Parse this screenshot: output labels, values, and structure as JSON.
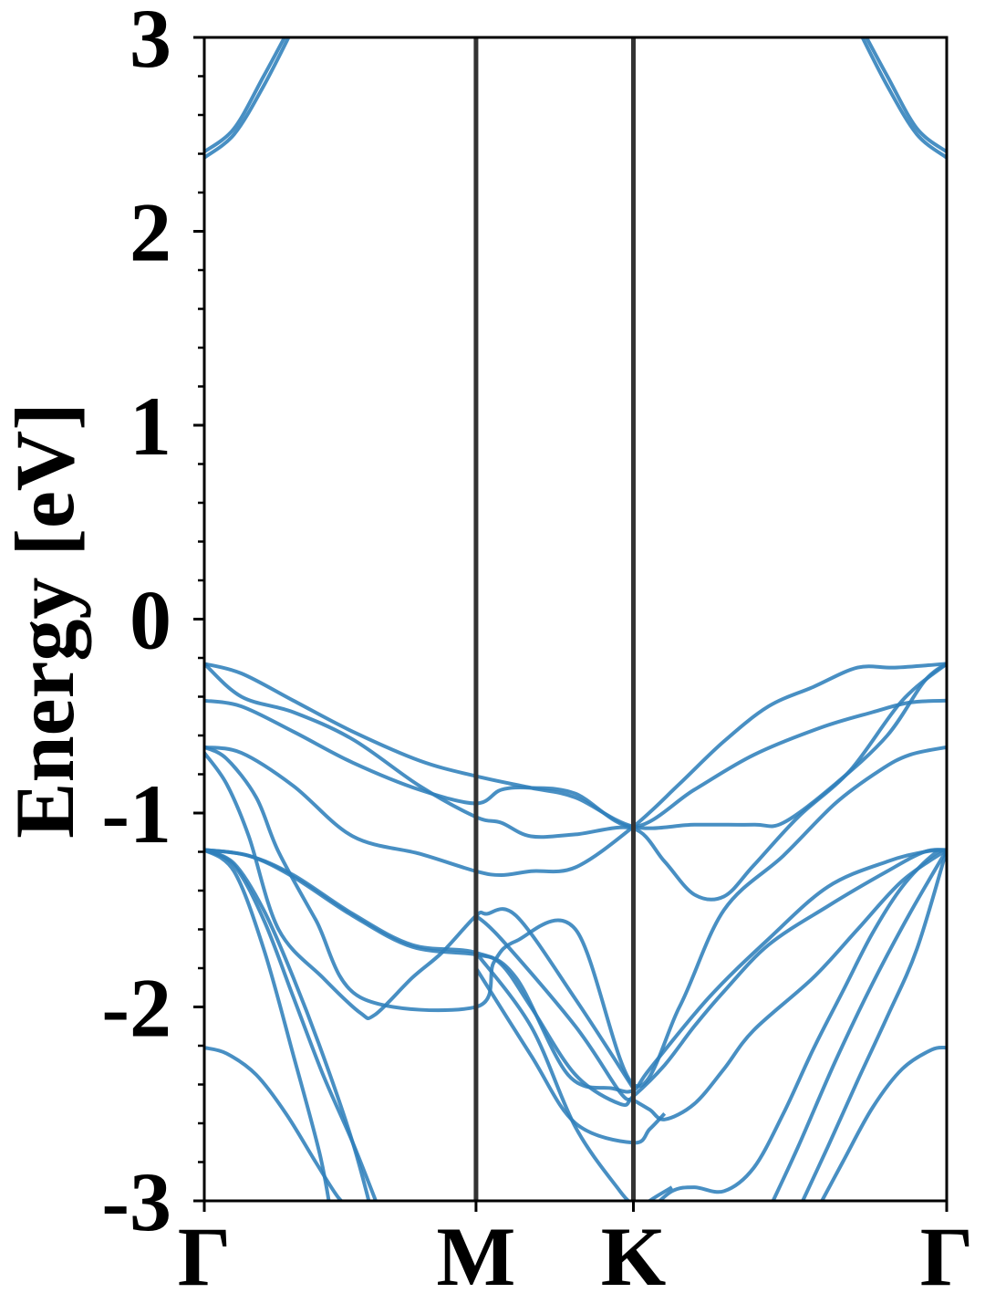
{
  "chart_data": {
    "type": "line",
    "title": "",
    "xlabel": "",
    "ylabel": "Energy [eV]",
    "ylim": [
      -3,
      3
    ],
    "yticks": [
      -3,
      -2,
      -1,
      0,
      1,
      2,
      3
    ],
    "ytick_labels": [
      "-3",
      "-2",
      "-1",
      "0",
      "1",
      "2",
      "3"
    ],
    "x_range": [
      0,
      1
    ],
    "high_symmetry_points": [
      {
        "label": "Γ",
        "x": 0.0
      },
      {
        "label": "M",
        "x": 0.366
      },
      {
        "label": "K",
        "x": 0.578
      },
      {
        "label": "Γ",
        "x": 1.0
      }
    ],
    "grid": false,
    "legend": "none",
    "colors": {
      "bands": "#2f80bb",
      "kpath_lines": "#333333",
      "axes": "#000000"
    },
    "series": [
      {
        "x": [
          0.0,
          0.04,
          0.08,
          0.12
        ],
        "y": [
          2.38,
          2.5,
          2.75,
          3.05
        ]
      },
      {
        "x": [
          0.0,
          0.04,
          0.08,
          0.115
        ],
        "y": [
          2.41,
          2.53,
          2.8,
          3.05
        ]
      },
      {
        "x": [
          0.88,
          0.92,
          0.96,
          1.0
        ],
        "y": [
          3.05,
          2.75,
          2.5,
          2.38
        ]
      },
      {
        "x": [
          0.885,
          0.92,
          0.96,
          1.0
        ],
        "y": [
          3.05,
          2.8,
          2.53,
          2.41
        ]
      },
      {
        "x": [
          0.0,
          0.05,
          0.12,
          0.2,
          0.29,
          0.366,
          0.44,
          0.5,
          0.578,
          0.66,
          0.74,
          0.78,
          0.85,
          0.92,
          0.97,
          1.0
        ],
        "y": [
          -0.23,
          -0.28,
          -0.42,
          -0.58,
          -0.73,
          -0.81,
          -0.87,
          -0.92,
          -1.07,
          -1.06,
          -1.06,
          -1.05,
          -0.85,
          -0.6,
          -0.32,
          -0.23
        ]
      },
      {
        "x": [
          0.0,
          0.05,
          0.12,
          0.2,
          0.29,
          0.366,
          0.4,
          0.44,
          0.5,
          0.578,
          0.66,
          0.74,
          0.83,
          0.9,
          0.95,
          1.0
        ],
        "y": [
          -0.42,
          -0.45,
          -0.58,
          -0.74,
          -0.88,
          -0.95,
          -0.88,
          -0.87,
          -0.9,
          -1.07,
          -0.88,
          -0.7,
          -0.56,
          -0.48,
          -0.43,
          -0.42
        ]
      },
      {
        "x": [
          0.0,
          0.05,
          0.12,
          0.2,
          0.29,
          0.366,
          0.4,
          0.44,
          0.5,
          0.578,
          0.62,
          0.66,
          0.7,
          0.74,
          0.8,
          0.87,
          0.94,
          1.0
        ],
        "y": [
          -0.23,
          -0.4,
          -0.48,
          -0.62,
          -0.86,
          -1.02,
          -1.05,
          -1.12,
          -1.11,
          -1.08,
          -1.25,
          -1.42,
          -1.43,
          -1.27,
          -1.02,
          -0.78,
          -0.42,
          -0.23
        ]
      },
      {
        "x": [
          0.0,
          0.05,
          0.12,
          0.2,
          0.29,
          0.366,
          0.4,
          0.44,
          0.5,
          0.578,
          0.64,
          0.7,
          0.76,
          0.82,
          0.88,
          0.93,
          1.0
        ],
        "y": [
          -0.66,
          -0.69,
          -0.86,
          -1.12,
          -1.21,
          -1.3,
          -1.32,
          -1.3,
          -1.28,
          -1.07,
          -0.85,
          -0.63,
          -0.45,
          -0.35,
          -0.25,
          -0.25,
          -0.23
        ]
      },
      {
        "x": [
          0.0,
          0.03,
          0.07,
          0.1,
          0.15,
          0.21,
          0.366,
          0.39,
          0.42,
          0.5,
          0.578,
          0.64,
          0.7,
          0.78,
          0.85,
          0.91,
          0.95,
          1.0
        ],
        "y": [
          -0.66,
          -0.72,
          -0.92,
          -1.2,
          -1.55,
          -1.95,
          -2.0,
          -1.77,
          -1.66,
          -1.6,
          -2.4,
          -2.0,
          -1.5,
          -1.22,
          -0.95,
          -0.78,
          -0.7,
          -0.66
        ]
      },
      {
        "x": [
          0.0,
          0.03,
          0.06,
          0.1,
          0.16,
          0.21,
          0.23,
          0.28,
          0.32,
          0.366,
          0.38,
          0.42,
          0.5,
          0.578
        ],
        "y": [
          -0.69,
          -0.85,
          -1.12,
          -1.6,
          -1.85,
          -2.03,
          -2.04,
          -1.85,
          -1.72,
          -1.53,
          -1.52,
          -1.53,
          -1.96,
          -2.42
        ]
      },
      {
        "x": [
          0.0,
          0.06,
          0.12,
          0.2,
          0.28,
          0.366,
          0.42,
          0.49,
          0.55,
          0.578,
          0.6,
          0.68,
          0.76,
          0.84,
          0.92,
          0.97,
          1.0
        ],
        "y": [
          -1.19,
          -1.22,
          -1.32,
          -1.52,
          -1.68,
          -1.72,
          -1.85,
          -2.35,
          -2.42,
          -2.43,
          -2.32,
          -1.95,
          -1.65,
          -1.38,
          -1.25,
          -1.2,
          -1.19
        ]
      },
      {
        "x": [
          0.0,
          0.06,
          0.12,
          0.2,
          0.28,
          0.366,
          0.4,
          0.44,
          0.5,
          0.56,
          0.578,
          0.62,
          0.66,
          0.7,
          0.76,
          0.84,
          0.92,
          0.97,
          1.0
        ],
        "y": [
          -1.19,
          -1.22,
          -1.33,
          -1.53,
          -1.69,
          -1.73,
          -1.78,
          -2.0,
          -2.35,
          -2.5,
          -2.46,
          -2.3,
          -2.1,
          -1.92,
          -1.68,
          -1.48,
          -1.3,
          -1.2,
          -1.19
        ]
      },
      {
        "x": [
          0.0,
          0.04,
          0.08,
          0.12,
          0.16,
          0.2,
          0.236
        ],
        "y": [
          -1.19,
          -1.27,
          -1.55,
          -1.95,
          -2.35,
          -2.7,
          -3.05
        ]
      },
      {
        "x": [
          0.0,
          0.04,
          0.08,
          0.12,
          0.16,
          0.2,
          0.225
        ],
        "y": [
          -1.19,
          -1.26,
          -1.5,
          -1.85,
          -2.25,
          -2.7,
          -3.05
        ]
      },
      {
        "x": [
          0.0,
          0.04,
          0.08,
          0.12,
          0.155,
          0.17
        ],
        "y": [
          -1.19,
          -1.3,
          -1.7,
          -2.25,
          -2.75,
          -3.05
        ]
      },
      {
        "x": [
          0.0,
          0.03,
          0.07,
          0.11,
          0.15,
          0.18,
          0.2
        ],
        "y": [
          -2.21,
          -2.24,
          -2.35,
          -2.55,
          -2.8,
          -2.98,
          -3.05
        ]
      },
      {
        "x": [
          0.366,
          0.44,
          0.5,
          0.578,
          0.6,
          0.62
        ],
        "y": [
          -1.8,
          -2.25,
          -2.6,
          -2.7,
          -2.63,
          -2.55
        ]
      },
      {
        "x": [
          0.366,
          0.4,
          0.5,
          0.56,
          0.578,
          0.6,
          0.62,
          0.66,
          0.7,
          0.74,
          0.82,
          0.88,
          0.94,
          1.0
        ],
        "y": [
          -1.53,
          -1.65,
          -2.1,
          -2.44,
          -2.48,
          -2.53,
          -2.58,
          -2.5,
          -2.32,
          -2.12,
          -1.85,
          -1.6,
          -1.35,
          -1.19
        ]
      },
      {
        "x": [
          0.366,
          0.44,
          0.5,
          0.56,
          0.578
        ],
        "y": [
          -1.72,
          -2.1,
          -2.62,
          -2.95,
          -3.02
        ]
      },
      {
        "x": [
          0.6,
          0.63,
          0.66,
          0.7,
          0.74,
          0.78,
          0.82,
          0.86,
          0.9,
          0.94,
          0.98,
          1.0
        ],
        "y": [
          -3.05,
          -2.95,
          -2.93,
          -2.95,
          -2.83,
          -2.55,
          -2.22,
          -1.92,
          -1.62,
          -1.38,
          -1.22,
          -1.19
        ]
      },
      {
        "x": [
          0.59,
          0.6,
          0.63
        ],
        "y": [
          -3.05,
          -3.0,
          -2.93
        ]
      },
      {
        "x": [
          0.76,
          0.8,
          0.85,
          0.9,
          0.95,
          1.0
        ],
        "y": [
          -3.05,
          -2.72,
          -2.28,
          -1.88,
          -1.52,
          -1.19
        ]
      },
      {
        "x": [
          0.8,
          0.84,
          0.88,
          0.92,
          0.96,
          1.0
        ],
        "y": [
          -3.05,
          -2.72,
          -2.38,
          -2.05,
          -1.7,
          -1.19
        ]
      },
      {
        "x": [
          0.825,
          0.86,
          0.9,
          0.94,
          0.98,
          1.0
        ],
        "y": [
          -3.05,
          -2.8,
          -2.52,
          -2.32,
          -2.22,
          -2.21
        ]
      }
    ]
  }
}
